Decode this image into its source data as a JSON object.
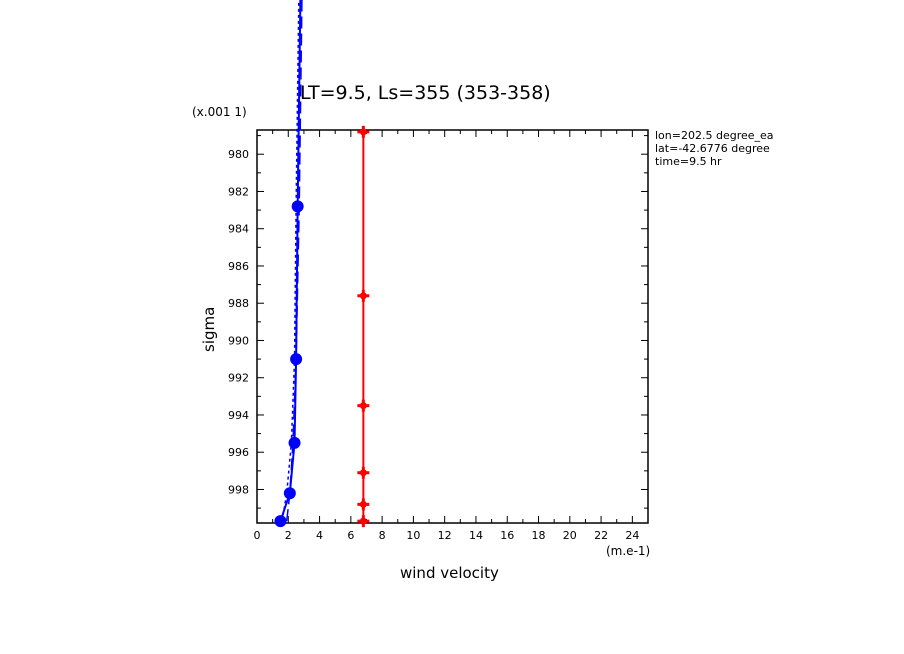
{
  "chart_data": {
    "type": "line",
    "title": "LT=9.5, Ls=355 (353-358)",
    "xlabel": "wind velocity",
    "ylabel": "sigma",
    "x_unit_label": "(m.e-1)",
    "y_unit_label": "(x.001 1)",
    "xlim": [
      0,
      25
    ],
    "ylim": [
      999.8,
      978.7
    ],
    "x_ticks": [
      0,
      2,
      4,
      6,
      8,
      10,
      12,
      14,
      16,
      18,
      20,
      22,
      24
    ],
    "x_tick_labels": [
      "0",
      "2",
      "4",
      "6",
      "8",
      "10",
      "12",
      "14",
      "16",
      "18",
      "20",
      "22",
      "24"
    ],
    "y_ticks": [
      980,
      982,
      984,
      986,
      988,
      990,
      992,
      994,
      996,
      998
    ],
    "y_tick_labels": [
      "980",
      "982",
      "984",
      "986",
      "988",
      "990",
      "992",
      "994",
      "996",
      "998"
    ],
    "grid": false,
    "info_lines": [
      "lon=202.5 degree_ea",
      "lat=-42.6776 degree",
      "time=9.5 hr"
    ],
    "series": [
      {
        "color": "#0000ff",
        "style": "solid",
        "marker": "circle",
        "points": [
          [
            1.5,
            999.7
          ],
          [
            2.1,
            998.2
          ],
          [
            2.4,
            995.5
          ],
          [
            2.5,
            991.0
          ],
          [
            2.6,
            982.8
          ],
          [
            2.8,
            970.0
          ]
        ]
      },
      {
        "color": "#0000ff",
        "style": "dashed",
        "marker": "none",
        "points": [
          [
            1.9,
            999.7
          ],
          [
            2.1,
            998.2
          ],
          [
            2.3,
            995.5
          ],
          [
            2.5,
            991.0
          ],
          [
            2.7,
            982.8
          ],
          [
            2.9,
            970.0
          ]
        ]
      },
      {
        "color": "#0000ff",
        "style": "dotted",
        "marker": "none",
        "points": [
          [
            1.6,
            999.7
          ],
          [
            1.9,
            998.2
          ],
          [
            2.2,
            995.5
          ],
          [
            2.4,
            991.0
          ],
          [
            2.5,
            982.8
          ],
          [
            2.7,
            970.0
          ]
        ]
      },
      {
        "color": "#ff0000",
        "style": "solid",
        "marker": "cross",
        "points": [
          [
            6.8,
            999.7
          ],
          [
            6.8,
            998.8
          ],
          [
            6.8,
            997.1
          ],
          [
            6.8,
            993.5
          ],
          [
            6.8,
            987.6
          ],
          [
            6.8,
            978.8
          ]
        ]
      }
    ]
  }
}
